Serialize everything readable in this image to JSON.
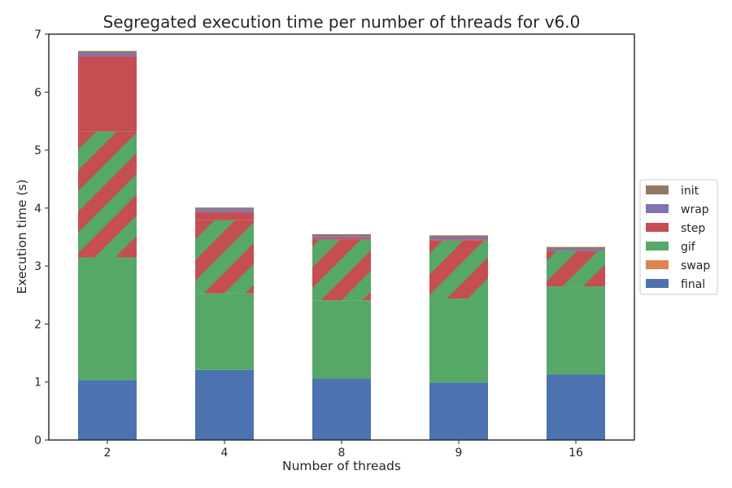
{
  "chart_data": {
    "type": "bar",
    "stacked": true,
    "title": "Segregated execution time per number of threads for v6.0",
    "xlabel": "Number of threads",
    "ylabel": "Execution time (s)",
    "ylim": [
      0,
      7
    ],
    "yticks": [
      0,
      1,
      2,
      3,
      4,
      5,
      6,
      7
    ],
    "categories": [
      "2",
      "4",
      "8",
      "9",
      "16"
    ],
    "grid": false,
    "legend_position": "center-right, outside",
    "legend_order": [
      "init",
      "wrap",
      "step",
      "gif",
      "swap",
      "final"
    ],
    "hatch": "diagonal stripes alternating gif and step colors in the overlap segment",
    "series": [
      {
        "name": "final",
        "color": "#4c72b0",
        "values": [
          1.03,
          1.21,
          1.06,
          0.99,
          1.13
        ]
      },
      {
        "name": "gif",
        "color": "#55a868",
        "values": [
          2.12,
          1.32,
          1.35,
          1.45,
          1.52
        ]
      },
      {
        "name": "gif/step",
        "color": "#55a868",
        "hatch_color": "#c44e52",
        "legend": false,
        "values": [
          2.17,
          1.26,
          1.05,
          1.0,
          0.61
        ]
      },
      {
        "name": "step",
        "color": "#c44e52",
        "values": [
          1.3,
          0.14,
          0.03,
          0.02,
          0.0
        ]
      },
      {
        "name": "swap",
        "color": "#dd8452",
        "values": [
          0.0,
          0.0,
          0.0,
          0.0,
          0.0
        ]
      },
      {
        "name": "wrap",
        "color": "#8172b3",
        "values": [
          0.05,
          0.05,
          0.03,
          0.04,
          0.03
        ]
      },
      {
        "name": "init",
        "color": "#937860",
        "values": [
          0.04,
          0.03,
          0.03,
          0.03,
          0.04
        ]
      }
    ]
  }
}
